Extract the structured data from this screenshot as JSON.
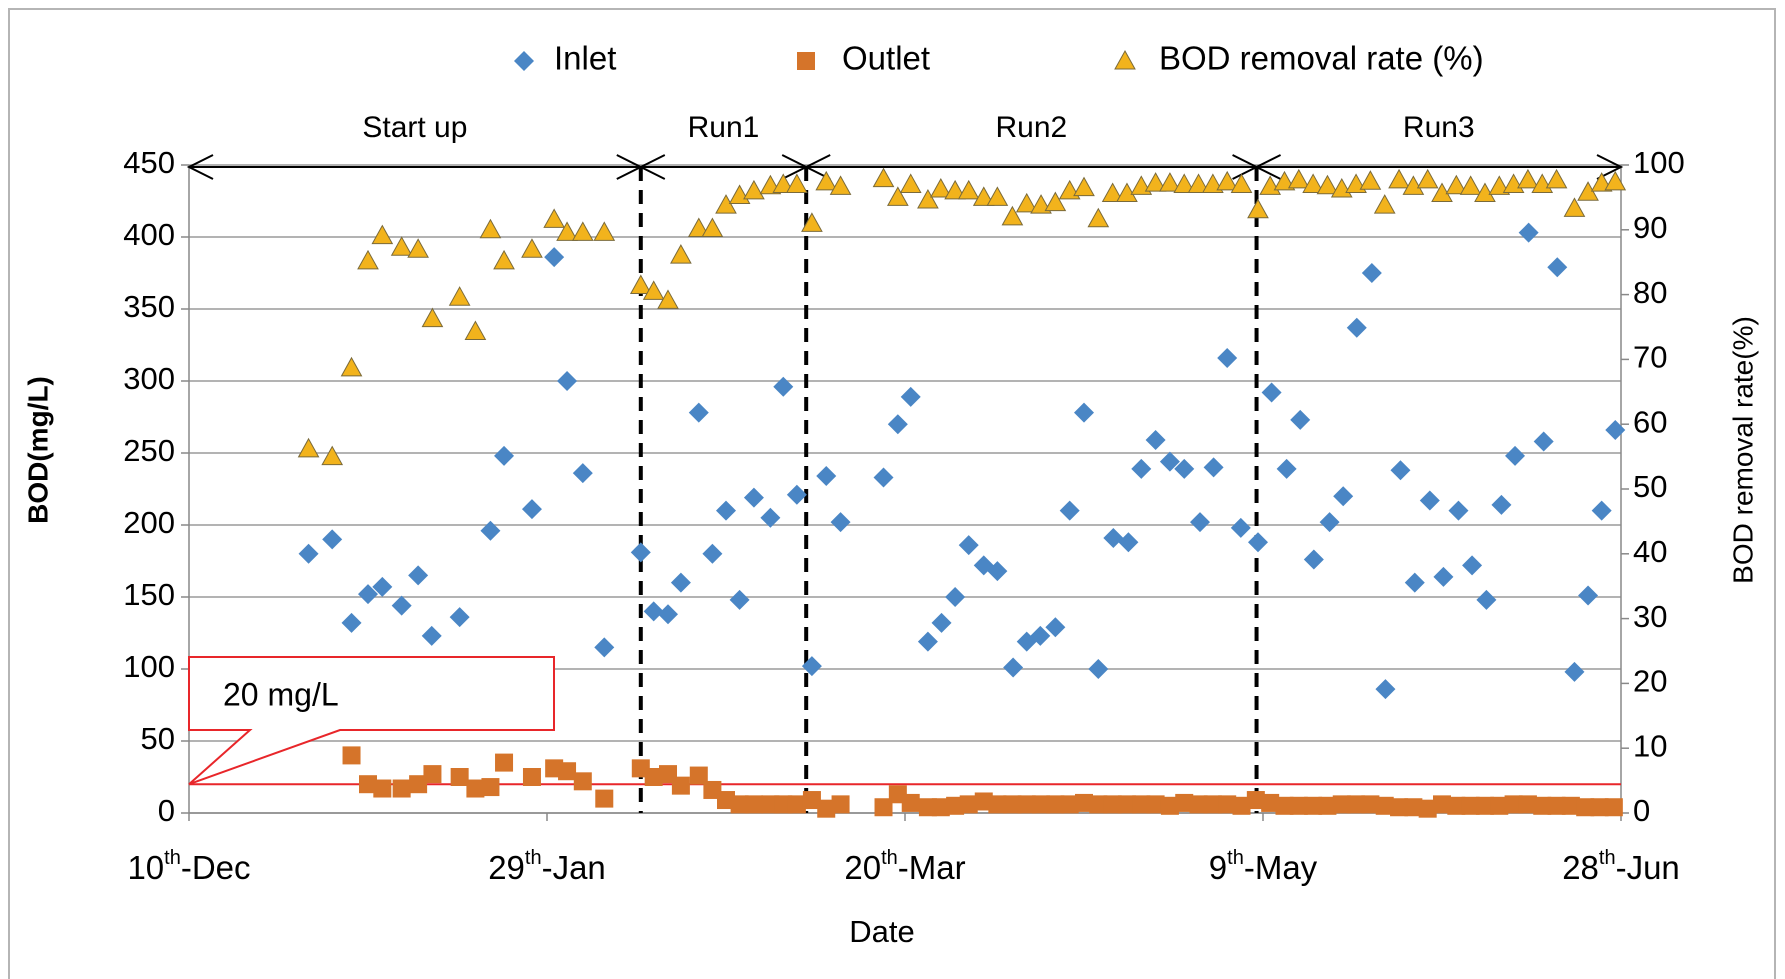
{
  "chart_data": {
    "type": "scatter",
    "xlabel": "Date",
    "ylabel": "BOD(mg/L)",
    "y2label": "BOD removal rate(%)",
    "xlim": [
      0,
      200
    ],
    "xticks": [
      {
        "value": 0,
        "label": "10th-Dec"
      },
      {
        "value": 50,
        "label": "29th-Jan"
      },
      {
        "value": 100,
        "label": "20th-Mar"
      },
      {
        "value": 150,
        "label": "9th-May"
      },
      {
        "value": 200,
        "label": "28th-Jun"
      }
    ],
    "ylim": [
      0,
      450
    ],
    "yticks": [
      0,
      50,
      100,
      150,
      200,
      250,
      300,
      350,
      400,
      450
    ],
    "y2lim": [
      0,
      100
    ],
    "y2ticks": [
      0,
      10,
      20,
      30,
      40,
      50,
      60,
      70,
      80,
      90,
      100
    ],
    "grid": true,
    "legend": "top",
    "phases": [
      {
        "label": "Start up",
        "start": 0,
        "end": 63.1
      },
      {
        "label": "Run1",
        "start": 63.1,
        "end": 86.2
      },
      {
        "label": "Run2",
        "start": 86.2,
        "end": 149.1
      },
      {
        "label": "Run3",
        "start": 149.1,
        "end": 200
      }
    ],
    "threshold": {
      "value": 20,
      "label": "20 mg/L",
      "color": "#e8262a"
    },
    "series": [
      {
        "name": "Inlet",
        "color": "#4a86c5",
        "marker": "diamond",
        "x": [
          16.7,
          20,
          22.7,
          25,
          27,
          29.7,
          32,
          33.9,
          37.8,
          42.1,
          44,
          47.9,
          51,
          52.8,
          55,
          58,
          63.1,
          64.9,
          66.9,
          68.7,
          71.2,
          73.1,
          75,
          76.9,
          78.9,
          81.2,
          83,
          84.9,
          87,
          89,
          91,
          97,
          99,
          100.8,
          103.2,
          105.1,
          107,
          108.9,
          111,
          112.9,
          115.1,
          117,
          118.9,
          121,
          123,
          125,
          127,
          129.1,
          131.2,
          133,
          135,
          137,
          139,
          141.2,
          143.1,
          145,
          146.9,
          149.3,
          151.2,
          153.3,
          155.2,
          157.1,
          159.3,
          161.2,
          163.1,
          165.2,
          167.1,
          169.2,
          171.2,
          173.3,
          175.2,
          177.3,
          179.2,
          181.2,
          183.3,
          185.2,
          187.1,
          189.2,
          191.1,
          193.5,
          195.4,
          197.3,
          199.2
        ],
        "values": [
          180,
          190,
          132,
          152,
          157,
          144,
          165,
          123,
          136,
          196,
          248,
          211,
          386,
          300,
          236,
          115,
          181,
          140,
          138,
          160,
          278,
          180,
          210,
          148,
          219,
          205,
          296,
          221,
          102,
          234,
          202,
          233,
          270,
          289,
          119,
          132,
          150,
          186,
          172,
          168,
          101,
          119,
          123,
          129,
          210,
          278,
          100,
          191,
          188,
          239,
          259,
          244,
          239,
          202,
          240,
          316,
          198,
          188,
          292,
          239,
          273,
          176,
          202,
          220,
          337,
          375,
          86,
          238,
          160,
          217,
          164,
          210,
          172,
          148,
          214,
          248,
          403,
          258,
          379,
          98,
          151,
          210,
          266
        ]
      },
      {
        "name": "Outlet",
        "color": "#d5742a",
        "marker": "square",
        "x": [
          22.7,
          25,
          27,
          29.7,
          32,
          34,
          37.8,
          40,
          42.1,
          44,
          47.9,
          51,
          52.8,
          55,
          58,
          63.1,
          64.9,
          66.9,
          68.7,
          71.2,
          73.1,
          75,
          76.9,
          78.9,
          81.2,
          83,
          84.9,
          87,
          89,
          91,
          97,
          99,
          100.8,
          103.2,
          105,
          107,
          108.9,
          111,
          112.9,
          115,
          117,
          119,
          121,
          123,
          125,
          127,
          129,
          131,
          133,
          135,
          137,
          139,
          141,
          143,
          145,
          147,
          149,
          151,
          153,
          155,
          157,
          159,
          161,
          163,
          165,
          167,
          169,
          171,
          173,
          175,
          177,
          179,
          181,
          183,
          185,
          187,
          189,
          191,
          193,
          195,
          197,
          199
        ],
        "values": [
          40,
          20,
          17,
          17,
          20,
          27,
          25,
          17,
          18,
          35,
          25,
          31,
          29,
          22,
          10,
          31,
          25,
          27,
          19,
          26,
          16,
          9,
          6,
          6,
          6,
          6,
          6,
          9,
          3,
          6,
          4,
          13,
          7,
          4,
          4,
          5,
          6,
          8,
          6,
          6,
          6,
          6,
          6,
          6,
          7,
          6,
          6,
          6,
          6,
          6,
          5,
          7,
          6,
          6,
          6,
          5,
          9,
          7,
          5,
          5,
          5,
          5,
          6,
          6,
          6,
          5,
          4,
          4,
          3,
          6,
          5,
          5,
          5,
          5,
          6,
          6,
          5,
          5,
          5,
          4,
          4,
          4
        ]
      },
      {
        "name": "BOD removal rate (%)",
        "color": "#f2b31c",
        "marker": "triangle",
        "axis": "y2",
        "x": [
          16.7,
          20,
          22.7,
          25,
          27,
          29.7,
          32,
          34,
          37.8,
          40,
          42.1,
          44,
          47.9,
          51,
          52.8,
          55,
          58,
          63.1,
          64.9,
          66.9,
          68.7,
          71.2,
          73.1,
          75,
          76.9,
          78.9,
          81.2,
          83,
          84.9,
          87,
          89,
          91,
          97,
          99,
          100.8,
          103.2,
          105,
          107,
          108.9,
          111,
          112.9,
          115,
          117,
          119,
          121,
          123,
          125,
          127,
          129,
          131,
          133,
          135,
          137,
          139,
          141,
          143,
          145,
          147,
          149.3,
          151,
          153,
          155,
          157,
          159,
          161,
          163,
          165,
          167,
          169,
          171,
          173,
          175,
          177,
          179,
          181,
          183,
          185,
          187,
          189,
          191,
          193.5,
          195.4,
          197.3,
          199.2
        ],
        "values": [
          56.2,
          55,
          68.7,
          85.2,
          89.1,
          87.3,
          87,
          76.3,
          79.6,
          74.3,
          90,
          85.2,
          87,
          91.6,
          89.6,
          89.6,
          89.6,
          81.4,
          80.5,
          79.1,
          86.1,
          90.2,
          90.2,
          93.8,
          95.3,
          96,
          96.8,
          97,
          97,
          91,
          97.4,
          96.7,
          97.9,
          95,
          97,
          94.6,
          96.3,
          96,
          96,
          95,
          95,
          92,
          94,
          93.8,
          94.2,
          96,
          96.5,
          91.7,
          95.6,
          95.6,
          96.7,
          97.2,
          97.2,
          97,
          97,
          97,
          97.4,
          97,
          93.1,
          96.7,
          97.4,
          97.7,
          97,
          96.8,
          96.3,
          97,
          97.5,
          93.8,
          97.7,
          96.7,
          97.7,
          95.6,
          96.8,
          96.7,
          95.6,
          96.7,
          97,
          97.7,
          97,
          97.7,
          93.3,
          95.8,
          97.2,
          97.4
        ]
      }
    ]
  }
}
